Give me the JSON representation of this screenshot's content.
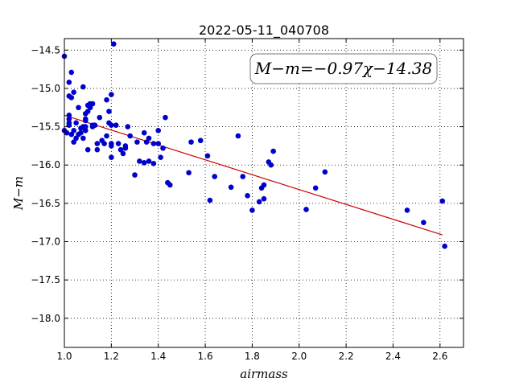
{
  "chart_data": {
    "type": "scatter",
    "title": "2022-05-11_040708",
    "xlabel": "airmass",
    "ylabel": "M−m",
    "xlim": [
      1.0,
      2.7
    ],
    "ylim": [
      -18.38,
      -14.35
    ],
    "y_inverted": true,
    "grid": true,
    "x_ticks": [
      1.0,
      1.2,
      1.4,
      1.6,
      1.8,
      2.0,
      2.2,
      2.4,
      2.6
    ],
    "x_tick_labels": [
      "1.0",
      "1.2",
      "1.4",
      "1.6",
      "1.8",
      "2.0",
      "2.2",
      "2.4",
      "2.6"
    ],
    "y_ticks": [
      -14.5,
      -15.0,
      -15.5,
      -16.0,
      -16.5,
      -17.0,
      -17.5,
      -18.0
    ],
    "y_tick_labels": [
      "−14.5",
      "−15.0",
      "−15.5",
      "−16.0",
      "−16.5",
      "−17.0",
      "−17.5",
      "−18.0"
    ],
    "annotation": "M−m=−0.97χ−14.38",
    "fit": {
      "slope": -0.97,
      "intercept": -14.38,
      "x_range": [
        1.0,
        2.61
      ],
      "color": "#cc0000"
    },
    "marker_color": "#0000cc",
    "points": [
      [
        1.0,
        -14.58
      ],
      [
        1.0,
        -15.55
      ],
      [
        1.01,
        -15.58
      ],
      [
        1.02,
        -14.92
      ],
      [
        1.02,
        -15.1
      ],
      [
        1.02,
        -15.35
      ],
      [
        1.02,
        -15.4
      ],
      [
        1.02,
        -15.45
      ],
      [
        1.02,
        -15.48
      ],
      [
        1.03,
        -15.6
      ],
      [
        1.03,
        -15.12
      ],
      [
        1.03,
        -14.79
      ],
      [
        1.04,
        -15.05
      ],
      [
        1.04,
        -15.55
      ],
      [
        1.04,
        -15.7
      ],
      [
        1.05,
        -15.65
      ],
      [
        1.05,
        -15.45
      ],
      [
        1.06,
        -15.6
      ],
      [
        1.06,
        -15.25
      ],
      [
        1.07,
        -15.52
      ],
      [
        1.07,
        -15.58
      ],
      [
        1.08,
        -14.98
      ],
      [
        1.08,
        -15.65
      ],
      [
        1.08,
        -15.5
      ],
      [
        1.09,
        -15.33
      ],
      [
        1.09,
        -15.4
      ],
      [
        1.09,
        -15.42
      ],
      [
        1.09,
        -15.55
      ],
      [
        1.09,
        -15.5
      ],
      [
        1.1,
        -15.8
      ],
      [
        1.1,
        -15.3
      ],
      [
        1.1,
        -15.22
      ],
      [
        1.11,
        -15.2
      ],
      [
        1.11,
        -15.25
      ],
      [
        1.12,
        -15.5
      ],
      [
        1.12,
        -15.48
      ],
      [
        1.12,
        -15.2
      ],
      [
        1.13,
        -15.48
      ],
      [
        1.14,
        -15.8
      ],
      [
        1.14,
        -15.72
      ],
      [
        1.15,
        -15.38
      ],
      [
        1.16,
        -15.68
      ],
      [
        1.17,
        -15.72
      ],
      [
        1.18,
        -15.62
      ],
      [
        1.18,
        -15.15
      ],
      [
        1.19,
        -15.3
      ],
      [
        1.19,
        -15.45
      ],
      [
        1.2,
        -15.48
      ],
      [
        1.2,
        -15.72
      ],
      [
        1.2,
        -15.75
      ],
      [
        1.2,
        -15.9
      ],
      [
        1.2,
        -15.08
      ],
      [
        1.21,
        -14.42
      ],
      [
        1.22,
        -15.48
      ],
      [
        1.23,
        -15.72
      ],
      [
        1.24,
        -15.8
      ],
      [
        1.25,
        -15.85
      ],
      [
        1.26,
        -15.75
      ],
      [
        1.26,
        -15.78
      ],
      [
        1.27,
        -15.5
      ],
      [
        1.28,
        -15.62
      ],
      [
        1.3,
        -16.13
      ],
      [
        1.31,
        -15.7
      ],
      [
        1.32,
        -15.95
      ],
      [
        1.34,
        -15.58
      ],
      [
        1.34,
        -15.97
      ],
      [
        1.35,
        -15.7
      ],
      [
        1.36,
        -15.95
      ],
      [
        1.36,
        -15.65
      ],
      [
        1.38,
        -15.72
      ],
      [
        1.38,
        -15.98
      ],
      [
        1.4,
        -15.55
      ],
      [
        1.4,
        -15.72
      ],
      [
        1.41,
        -15.9
      ],
      [
        1.42,
        -15.78
      ],
      [
        1.43,
        -15.38
      ],
      [
        1.44,
        -16.23
      ],
      [
        1.45,
        -16.26
      ],
      [
        1.53,
        -16.1
      ],
      [
        1.54,
        -15.7
      ],
      [
        1.58,
        -15.68
      ],
      [
        1.61,
        -15.88
      ],
      [
        1.62,
        -16.46
      ],
      [
        1.64,
        -16.15
      ],
      [
        1.71,
        -16.29
      ],
      [
        1.74,
        -15.62
      ],
      [
        1.76,
        -16.15
      ],
      [
        1.78,
        -16.4
      ],
      [
        1.8,
        -16.59
      ],
      [
        1.83,
        -16.48
      ],
      [
        1.84,
        -16.3
      ],
      [
        1.85,
        -16.26
      ],
      [
        1.85,
        -16.44
      ],
      [
        1.87,
        -15.96
      ],
      [
        1.88,
        -16.0
      ],
      [
        1.89,
        -15.82
      ],
      [
        2.03,
        -16.58
      ],
      [
        2.07,
        -16.3
      ],
      [
        2.11,
        -16.09
      ],
      [
        2.46,
        -16.59
      ],
      [
        2.53,
        -16.75
      ],
      [
        2.61,
        -16.47
      ],
      [
        2.62,
        -17.06
      ]
    ]
  }
}
